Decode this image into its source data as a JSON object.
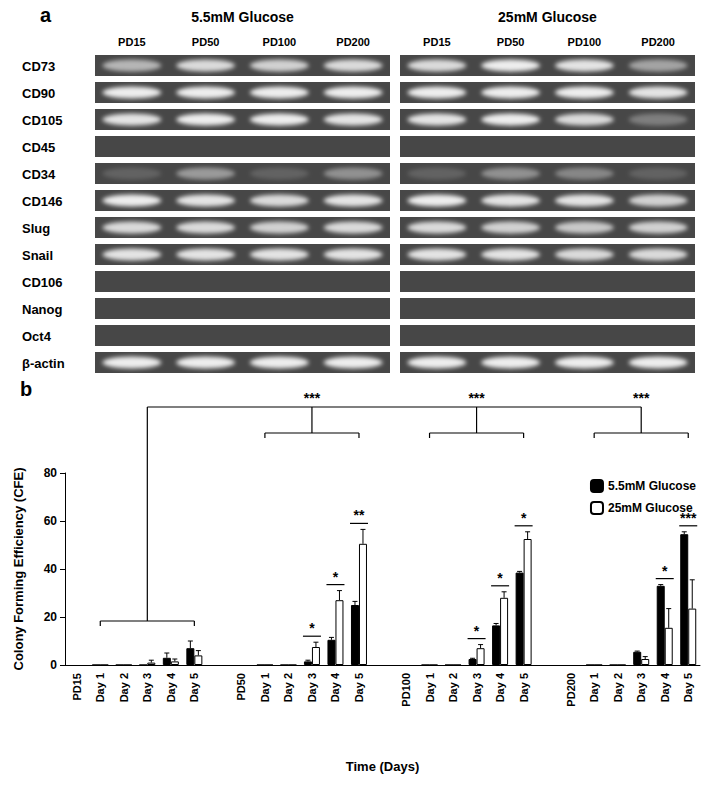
{
  "panel_a": {
    "panel_label": "a",
    "conditions": [
      {
        "title": "5.5mM Glucose",
        "lanes": [
          "PD15",
          "PD50",
          "PD100",
          "PD200"
        ]
      },
      {
        "title": "25mM Glucose",
        "lanes": [
          "PD15",
          "PD50",
          "PD100",
          "PD200"
        ]
      }
    ],
    "markers": [
      {
        "name": "CD73",
        "intensity": [
          [
            0.6,
            0.8,
            0.75,
            0.8
          ],
          [
            0.8,
            0.9,
            0.85,
            0.5
          ]
        ]
      },
      {
        "name": "CD90",
        "intensity": [
          [
            0.9,
            0.9,
            0.9,
            0.9
          ],
          [
            0.9,
            0.9,
            0.9,
            0.85
          ]
        ]
      },
      {
        "name": "CD105",
        "intensity": [
          [
            0.85,
            0.9,
            0.9,
            0.85
          ],
          [
            0.85,
            0.9,
            0.8,
            0.3
          ]
        ]
      },
      {
        "name": "CD45",
        "intensity": [
          [
            0,
            0,
            0,
            0
          ],
          [
            0,
            0,
            0,
            0
          ]
        ]
      },
      {
        "name": "CD34",
        "intensity": [
          [
            0.15,
            0.45,
            0.15,
            0.4
          ],
          [
            0.15,
            0.4,
            0.35,
            0.15
          ]
        ]
      },
      {
        "name": "CD146",
        "intensity": [
          [
            0.9,
            0.85,
            0.8,
            0.85
          ],
          [
            0.9,
            0.85,
            0.85,
            0.75
          ]
        ]
      },
      {
        "name": "Slug",
        "intensity": [
          [
            0.8,
            0.8,
            0.75,
            0.8
          ],
          [
            0.8,
            0.75,
            0.7,
            0.75
          ]
        ]
      },
      {
        "name": "Snail",
        "intensity": [
          [
            0.85,
            0.85,
            0.85,
            0.85
          ],
          [
            0.85,
            0.85,
            0.8,
            0.8
          ]
        ]
      },
      {
        "name": "CD106",
        "intensity": [
          [
            0,
            0,
            0,
            0
          ],
          [
            0,
            0,
            0,
            0
          ]
        ]
      },
      {
        "name": "Nanog",
        "intensity": [
          [
            0,
            0,
            0,
            0
          ],
          [
            0,
            0,
            0,
            0
          ]
        ]
      },
      {
        "name": "Oct4",
        "intensity": [
          [
            0,
            0,
            0,
            0
          ],
          [
            0,
            0,
            0,
            0
          ]
        ]
      },
      {
        "name": "β-actin",
        "intensity": [
          [
            0.9,
            0.9,
            0.9,
            0.9
          ],
          [
            0.9,
            0.9,
            0.9,
            0.9
          ]
        ]
      }
    ]
  },
  "chart_data": {
    "panel_label": "b",
    "type": "bar",
    "x_label": "Time (Days)",
    "y_label": "Colony Forming Efficiency (CFE)",
    "categories": [
      "PD15",
      "Day 1",
      "Day 2",
      "Day 3",
      "Day 4",
      "Day 5",
      null,
      "PD50",
      "Day 1",
      "Day 2",
      "Day 3",
      "Day 4",
      "Day 5",
      null,
      "PD100",
      "Day 1",
      "Day 2",
      "Day 3",
      "Day 4",
      "Day 5",
      null,
      "PD200",
      "Day 1",
      "Day 2",
      "Day 3",
      "Day 4",
      "Day 5"
    ],
    "series": [
      {
        "name": "5.5mM Glucose",
        "color": "#000000",
        "values": [
          null,
          0,
          0,
          0,
          3,
          7,
          null,
          null,
          0,
          0,
          1.5,
          10.5,
          25,
          null,
          null,
          0,
          0,
          2.5,
          16.5,
          38.5,
          null,
          null,
          0,
          0,
          5.5,
          33,
          54.5
        ],
        "errors": [
          null,
          null,
          null,
          null,
          2,
          3,
          null,
          null,
          null,
          null,
          0.5,
          1,
          1.5,
          null,
          null,
          null,
          null,
          0.3,
          0.8,
          0.5,
          null,
          null,
          null,
          null,
          0.3,
          0.5,
          1
        ]
      },
      {
        "name": "25mM Glucose",
        "color": "#ffffff",
        "values": [
          null,
          0,
          0,
          1,
          1.5,
          4,
          null,
          null,
          0,
          0,
          7.5,
          27,
          50.5,
          null,
          null,
          0,
          0,
          7,
          28,
          52.5,
          null,
          null,
          0,
          0,
          2.5,
          15.5,
          23.5
        ],
        "errors": [
          null,
          null,
          null,
          1,
          1,
          2,
          null,
          null,
          null,
          null,
          2,
          4,
          6,
          null,
          null,
          null,
          null,
          1.5,
          2.5,
          3,
          null,
          null,
          null,
          null,
          1,
          8,
          12
        ]
      }
    ],
    "significance": [
      null,
      null,
      null,
      null,
      null,
      null,
      null,
      null,
      null,
      null,
      "*",
      "*",
      "**",
      null,
      null,
      null,
      null,
      "*",
      "*",
      "*",
      null,
      null,
      null,
      null,
      null,
      "*",
      "***"
    ],
    "group_comparison": {
      "reference": "PD15",
      "groups": [
        "PD50",
        "PD100",
        "PD200"
      ],
      "label": "***"
    },
    "ylim": [
      0,
      80
    ],
    "yticks": [
      0,
      20,
      40,
      60,
      80
    ],
    "grid": false,
    "legend": "upper right"
  }
}
